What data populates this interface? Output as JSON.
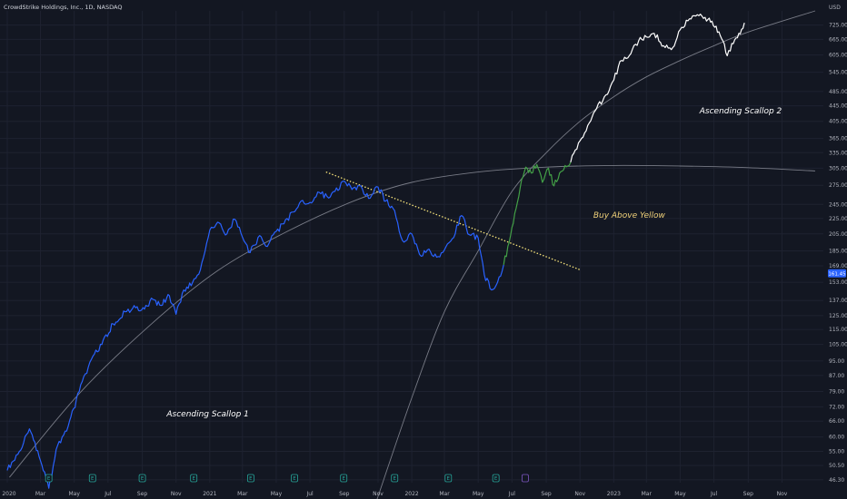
{
  "header": {
    "title": "CrowdStrike Holdings, Inc., 1D, NASDAQ",
    "currency": "USD"
  },
  "chart_data": {
    "type": "line",
    "title": "CrowdStrike Holdings, Inc., 1D, NASDAQ",
    "xlabel": "",
    "ylabel": "USD",
    "y_scale": "log",
    "grid": true,
    "legend": "none",
    "current_price": "161.45",
    "y_ticks": [
      "725.00",
      "665.00",
      "605.00",
      "545.00",
      "485.00",
      "445.00",
      "405.00",
      "365.00",
      "335.00",
      "305.00",
      "275.00",
      "245.00",
      "225.00",
      "205.00",
      "185.00",
      "169.00",
      "153.00",
      "137.00",
      "125.00",
      "115.00",
      "105.00",
      "95.00",
      "87.00",
      "79.00",
      "72.00",
      "66.00",
      "60.00",
      "55.00",
      "50.50",
      "46.30"
    ],
    "x_ticks": [
      "2020",
      "Mar",
      "May",
      "Jul",
      "Sep",
      "Nov",
      "2021",
      "Mar",
      "May",
      "Jul",
      "Sep",
      "Nov",
      "2022",
      "Mar",
      "May",
      "Jul",
      "Sep",
      "Nov",
      "2023",
      "Mar",
      "May",
      "Jul",
      "Sep",
      "Nov"
    ],
    "series": [
      {
        "color": "#2962ff",
        "x": [
          "2020-01-01",
          "2020-01-20",
          "2020-02-10",
          "2020-03-01",
          "2020-03-16",
          "2020-04-01",
          "2020-04-20",
          "2020-05-10",
          "2020-06-01",
          "2020-06-20",
          "2020-07-10",
          "2020-08-01",
          "2020-08-20",
          "2020-09-05",
          "2020-09-20",
          "2020-10-05",
          "2020-10-20",
          "2020-11-01",
          "2020-11-15",
          "2020-12-01",
          "2020-12-15",
          "2021-01-01",
          "2021-01-15",
          "2021-02-01",
          "2021-02-15",
          "2021-03-01",
          "2021-03-15",
          "2021-04-01",
          "2021-04-15",
          "2021-05-01",
          "2021-05-15",
          "2021-06-01",
          "2021-06-15",
          "2021-07-01",
          "2021-07-15",
          "2021-08-01",
          "2021-08-15",
          "2021-09-01",
          "2021-09-15",
          "2021-10-01",
          "2021-10-15",
          "2021-11-01",
          "2021-11-15",
          "2021-12-01",
          "2021-12-15",
          "2022-01-01",
          "2022-01-15",
          "2022-02-01",
          "2022-02-15",
          "2022-03-01",
          "2022-03-15",
          "2022-04-01",
          "2022-04-15",
          "2022-05-01",
          "2022-05-12",
          "2022-05-25",
          "2022-06-05",
          "2022-06-16"
        ],
        "values": [
          49,
          54,
          63,
          52,
          44,
          57,
          64,
          79,
          96,
          105,
          119,
          128,
          131,
          130,
          138,
          133,
          141,
          126,
          146,
          153,
          165,
          210,
          220,
          205,
          224,
          201,
          183,
          203,
          190,
          208,
          218,
          234,
          250,
          248,
          264,
          257,
          265,
          282,
          268,
          274,
          254,
          272,
          250,
          236,
          197,
          205,
          181,
          187,
          178,
          186,
          199,
          229,
          204,
          200,
          160,
          146,
          153,
          170
        ]
      },
      {
        "color": "#43a047",
        "x": [
          "2022-06-16",
          "2022-06-26",
          "2022-07-06",
          "2022-07-16",
          "2022-07-26",
          "2022-08-05",
          "2022-08-15",
          "2022-08-25",
          "2022-09-05",
          "2022-09-15",
          "2022-09-25",
          "2022-10-05",
          "2022-10-15"
        ],
        "values": [
          170,
          195,
          232,
          272,
          307,
          296,
          312,
          280,
          305,
          274,
          296,
          310,
          316
        ]
      },
      {
        "color": "#ffffff",
        "x": [
          "2022-10-15",
          "2022-11-01",
          "2022-11-15",
          "2022-12-01",
          "2022-12-15",
          "2023-01-01",
          "2023-01-15",
          "2023-02-01",
          "2023-02-15",
          "2023-03-01",
          "2023-03-15",
          "2023-04-01",
          "2023-04-15",
          "2023-05-01",
          "2023-05-15",
          "2023-06-01",
          "2023-06-15",
          "2023-06-25",
          "2023-07-05",
          "2023-07-15",
          "2023-07-25",
          "2023-08-05",
          "2023-08-15",
          "2023-08-25"
        ],
        "values": [
          316,
          360,
          395,
          438,
          470,
          520,
          585,
          610,
          660,
          675,
          690,
          640,
          625,
          705,
          744,
          772,
          760,
          738,
          720,
          667,
          602,
          648,
          690,
          735
        ]
      }
    ],
    "annotations": [
      {
        "text": "Ascending Scallop 1",
        "color": "#ffffff",
        "x": "2020-10-15",
        "y": 68
      },
      {
        "text": "Buy Above Yellow",
        "color": "#f0d17a",
        "x": "2022-11-25",
        "y": 226
      },
      {
        "text": "Ascending Scallop 2",
        "color": "#ffffff",
        "x": "2023-06-05",
        "y": 425
      }
    ],
    "trendline": {
      "color": "#f5e27a",
      "points": [
        {
          "x": "2021-07-30",
          "y": 298
        },
        {
          "x": "2022-11-01",
          "y": 165
        }
      ]
    },
    "arcs": [
      {
        "name": "scallop-arc-1",
        "points": [
          {
            "x": "2020-01-05",
            "y": 47
          },
          {
            "x": "2020-05-10",
            "y": 78
          },
          {
            "x": "2020-09-15",
            "y": 118
          },
          {
            "x": "2021-01-15",
            "y": 164
          },
          {
            "x": "2021-05-15",
            "y": 206
          },
          {
            "x": "2021-09-15",
            "y": 249
          },
          {
            "x": "2022-01-01",
            "y": 280
          },
          {
            "x": "2022-05-01",
            "y": 298
          },
          {
            "x": "2022-09-01",
            "y": 307
          },
          {
            "x": "2023-01-01",
            "y": 310
          },
          {
            "x": "2023-05-01",
            "y": 309
          },
          {
            "x": "2023-09-01",
            "y": 306
          },
          {
            "x": "2023-12-31",
            "y": 300
          }
        ]
      },
      {
        "name": "scallop-arc-2",
        "points": [
          {
            "x": "2021-10-30",
            "y": 41
          },
          {
            "x": "2022-01-01",
            "y": 76
          },
          {
            "x": "2022-03-01",
            "y": 128
          },
          {
            "x": "2022-05-01",
            "y": 185
          },
          {
            "x": "2022-07-01",
            "y": 265
          },
          {
            "x": "2022-09-01",
            "y": 335
          },
          {
            "x": "2022-11-01",
            "y": 405
          },
          {
            "x": "2023-01-01",
            "y": 470
          },
          {
            "x": "2023-03-01",
            "y": 530
          },
          {
            "x": "2023-05-01",
            "y": 585
          },
          {
            "x": "2023-07-01",
            "y": 640
          },
          {
            "x": "2023-09-01",
            "y": 695
          },
          {
            "x": "2023-12-31",
            "y": 790
          }
        ]
      }
    ],
    "events": [
      {
        "label": "E",
        "type": "earnings",
        "x": "2020-03-16"
      },
      {
        "label": "E",
        "type": "earnings",
        "x": "2020-06-03"
      },
      {
        "label": "E",
        "type": "earnings",
        "x": "2020-09-01"
      },
      {
        "label": "E",
        "type": "earnings",
        "x": "2020-12-03"
      },
      {
        "label": "E",
        "type": "earnings",
        "x": "2021-03-16"
      },
      {
        "label": "E",
        "type": "earnings",
        "x": "2021-06-03"
      },
      {
        "label": "E",
        "type": "earnings",
        "x": "2021-08-31"
      },
      {
        "label": "E",
        "type": "earnings",
        "x": "2021-12-01"
      },
      {
        "label": "E",
        "type": "earnings",
        "x": "2022-03-08"
      },
      {
        "label": "E",
        "type": "earnings",
        "x": "2022-06-02"
      }
    ]
  },
  "colors": {
    "background": "#131722",
    "grid": "#1e2230",
    "axis_text": "#b2b5be",
    "price_badge": "#2962ff",
    "earnings": "#26a69a",
    "earnings_upcoming": "#7e57c2"
  }
}
